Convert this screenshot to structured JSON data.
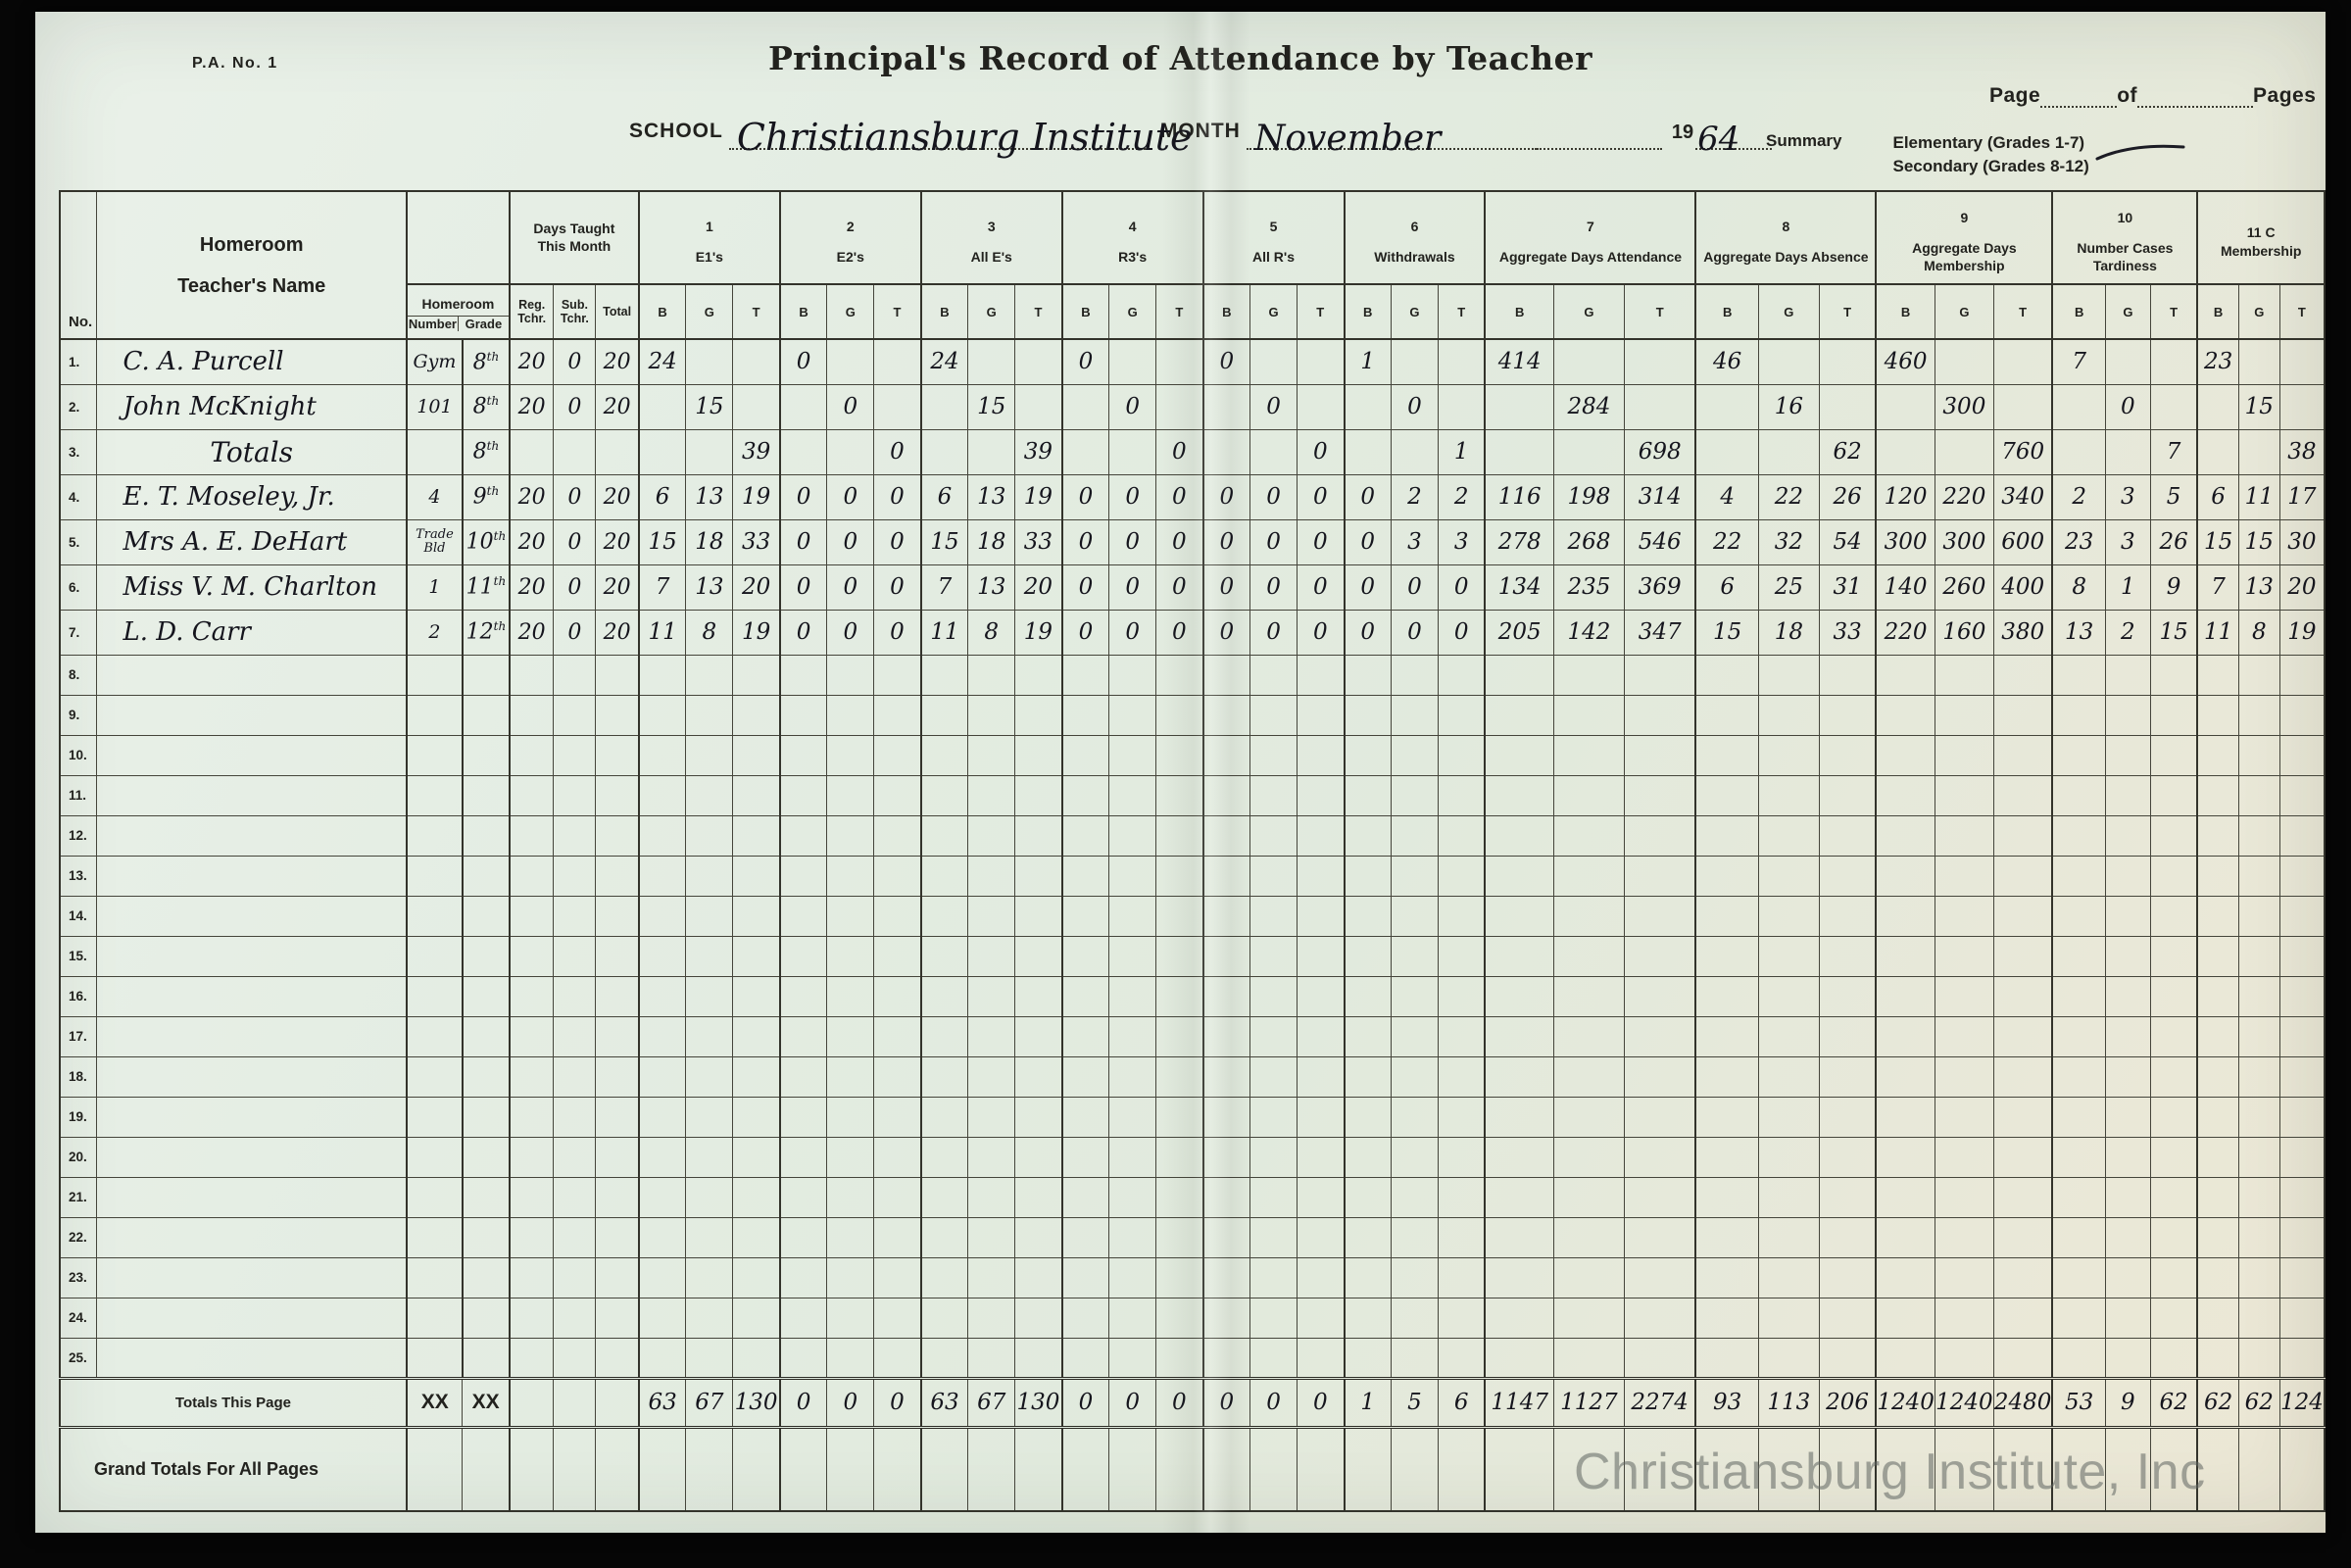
{
  "form": {
    "form_no": "P.A. No. 1",
    "title": "Principal's Record of Attendance by Teacher",
    "page_label": "Page",
    "of_label": "of",
    "pages_label": "Pages",
    "school_label": "SCHOOL",
    "school_value": "Christiansburg Institute",
    "month_label": "MONTH",
    "month_value": "November",
    "year_prefix": "19",
    "year_value": "64",
    "summary_label": "Summary",
    "summary_elementary": "Elementary (Grades 1-7)",
    "summary_secondary": "Secondary (Grades 8-12)",
    "summary_check_icon": "checkmark",
    "summary_checked": "Secondary (Grades 8-12)"
  },
  "table": {
    "no_label": "No.",
    "name_label_line1": "Homeroom",
    "name_label_line2": "Teacher's Name",
    "homeroom_label": "Homeroom",
    "homeroom_number_label": "Number",
    "homeroom_grade_label": "Grade",
    "days_label_line1": "Days Taught",
    "days_label_line2": "This Month",
    "reg_label": "Reg. Tchr.",
    "sub_label": "Sub. Tchr.",
    "total_label": "Total",
    "bgt": [
      "B",
      "G",
      "T"
    ],
    "groups": [
      {
        "num": "1",
        "label": "E1's"
      },
      {
        "num": "2",
        "label": "E2's"
      },
      {
        "num": "3",
        "label": "All E's"
      },
      {
        "num": "4",
        "label": "R3's"
      },
      {
        "num": "5",
        "label": "All R's"
      },
      {
        "num": "6",
        "label": "Withdrawals"
      },
      {
        "num": "7",
        "label": "Aggregate Days Attendance"
      },
      {
        "num": "8",
        "label": "Aggregate Days Absence"
      },
      {
        "num": "9",
        "label": "Aggregate Days Membership"
      },
      {
        "num": "10",
        "label": "Number Cases Tardiness"
      },
      {
        "num": "11 C",
        "label": "Membership"
      }
    ],
    "rows": [
      {
        "no": "1.",
        "name": "C. A. Purcell",
        "number": "Gym",
        "grade": "8th",
        "reg": "20",
        "sub": "0",
        "total": "20",
        "cells": [
          "24",
          "",
          "",
          "0",
          "",
          "",
          "24",
          "",
          "",
          "0",
          "",
          "",
          "0",
          "",
          "",
          "1",
          "",
          "",
          "414",
          "",
          "",
          "46",
          "",
          "",
          "460",
          "",
          "",
          "7",
          "",
          "",
          "23",
          "",
          ""
        ]
      },
      {
        "no": "2.",
        "name": "John McKnight",
        "number": "101",
        "grade": "8th",
        "reg": "20",
        "sub": "0",
        "total": "20",
        "cells": [
          "",
          "15",
          "",
          "",
          "0",
          "",
          "",
          "15",
          "",
          "",
          "0",
          "",
          "",
          "0",
          "",
          "",
          "0",
          "",
          "",
          "284",
          "",
          "",
          "16",
          "",
          "",
          "300",
          "",
          "",
          "0",
          "",
          "",
          "15",
          ""
        ]
      },
      {
        "no": "3.",
        "name": "Totals",
        "number": "",
        "grade": "8th",
        "reg": "",
        "sub": "",
        "total": "",
        "cells": [
          "",
          "",
          "39",
          "",
          "",
          "0",
          "",
          "",
          "39",
          "",
          "",
          "0",
          "",
          "",
          "0",
          "",
          "",
          "1",
          "",
          "",
          "698",
          "",
          "",
          "62",
          "",
          "",
          "760",
          "",
          "",
          "7",
          "",
          "",
          "38"
        ]
      },
      {
        "no": "4.",
        "name": "E. T. Moseley, Jr.",
        "number": "4",
        "grade": "9th",
        "reg": "20",
        "sub": "0",
        "total": "20",
        "cells": [
          "6",
          "13",
          "19",
          "0",
          "0",
          "0",
          "6",
          "13",
          "19",
          "0",
          "0",
          "0",
          "0",
          "0",
          "0",
          "0",
          "2",
          "2",
          "116",
          "198",
          "314",
          "4",
          "22",
          "26",
          "120",
          "220",
          "340",
          "2",
          "3",
          "5",
          "6",
          "11",
          "17"
        ]
      },
      {
        "no": "5.",
        "name": "Mrs A. E. DeHart",
        "number": "Trade Bld",
        "grade": "10th",
        "reg": "20",
        "sub": "0",
        "total": "20",
        "cells": [
          "15",
          "18",
          "33",
          "0",
          "0",
          "0",
          "15",
          "18",
          "33",
          "0",
          "0",
          "0",
          "0",
          "0",
          "0",
          "0",
          "3",
          "3",
          "278",
          "268",
          "546",
          "22",
          "32",
          "54",
          "300",
          "300",
          "600",
          "23",
          "3",
          "26",
          "15",
          "15",
          "30"
        ]
      },
      {
        "no": "6.",
        "name": "Miss V. M. Charlton",
        "number": "1",
        "grade": "11th",
        "reg": "20",
        "sub": "0",
        "total": "20",
        "cells": [
          "7",
          "13",
          "20",
          "0",
          "0",
          "0",
          "7",
          "13",
          "20",
          "0",
          "0",
          "0",
          "0",
          "0",
          "0",
          "0",
          "0",
          "0",
          "134",
          "235",
          "369",
          "6",
          "25",
          "31",
          "140",
          "260",
          "400",
          "8",
          "1",
          "9",
          "7",
          "13",
          "20"
        ]
      },
      {
        "no": "7.",
        "name": "L. D. Carr",
        "number": "2",
        "grade": "12th",
        "reg": "20",
        "sub": "0",
        "total": "20",
        "cells": [
          "11",
          "8",
          "19",
          "0",
          "0",
          "0",
          "11",
          "8",
          "19",
          "0",
          "0",
          "0",
          "0",
          "0",
          "0",
          "0",
          "0",
          "0",
          "205",
          "142",
          "347",
          "15",
          "18",
          "33",
          "220",
          "160",
          "380",
          "13",
          "2",
          "15",
          "11",
          "8",
          "19"
        ]
      },
      {
        "no": "8."
      },
      {
        "no": "9."
      },
      {
        "no": "10."
      },
      {
        "no": "11."
      },
      {
        "no": "12."
      },
      {
        "no": "13."
      },
      {
        "no": "14."
      },
      {
        "no": "15."
      },
      {
        "no": "16."
      },
      {
        "no": "17."
      },
      {
        "no": "18."
      },
      {
        "no": "19."
      },
      {
        "no": "20."
      },
      {
        "no": "21."
      },
      {
        "no": "22."
      },
      {
        "no": "23."
      },
      {
        "no": "24."
      },
      {
        "no": "25."
      }
    ],
    "totals_row": {
      "label": "Totals This Page",
      "number": "XX",
      "grade": "XX",
      "cells": [
        "63",
        "67",
        "130",
        "0",
        "0",
        "0",
        "63",
        "67",
        "130",
        "0",
        "0",
        "0",
        "0",
        "0",
        "0",
        "1",
        "5",
        "6",
        "1147",
        "1127",
        "2274",
        "93",
        "113",
        "206",
        "1240",
        "1240",
        "2480",
        "53",
        "9",
        "62",
        "62",
        "62",
        "124"
      ]
    },
    "grand_row": {
      "label": "Grand Totals For All Pages"
    }
  },
  "watermark": "Christiansburg Institute, Inc"
}
